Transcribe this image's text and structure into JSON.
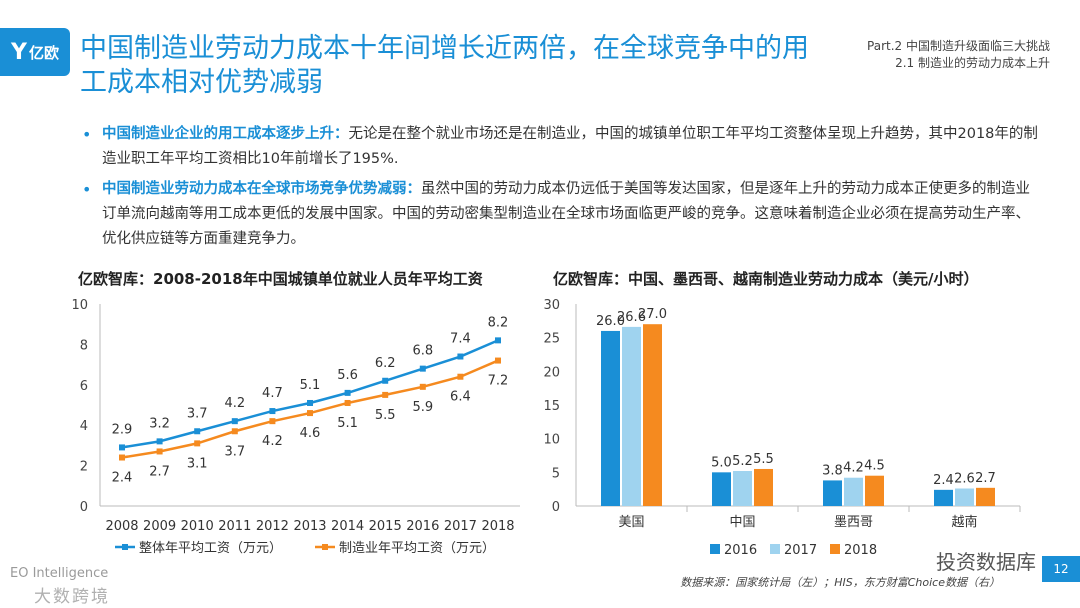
{
  "header": {
    "logo_text": "亿欧",
    "title": "中国制造业劳动力成本十年间增长近两倍，在全球竞争中的用工成本相对优势减弱",
    "part_line1": "Part.2  中国制造升级面临三大挑战",
    "part_line2": "2.1  制造业的劳动力成本上升"
  },
  "bullets": [
    {
      "lead": "中国制造业企业的用工成本逐步上升：",
      "text": "无论是在整个就业市场还是在制造业，中国的城镇单位职工年平均工资整体呈现上升趋势，其中2018年的制造业职工年平均工资相比10年前增长了195%."
    },
    {
      "lead": "中国制造业劳动力成本在全球市场竞争优势减弱：",
      "text": "虽然中国的劳动力成本仍远低于美国等发达国家，但是逐年上升的劳动力成本正使更多的制造业订单流向越南等用工成本更低的发展中国家。中国的劳动密集型制造业在全球市场面临更严峻的竞争。这意味着制造企业必须在提高劳动生产率、优化供应链等方面重建竞争力。"
    }
  ],
  "chart_data": [
    {
      "type": "line",
      "title": "亿欧智库：2008-2018年中国城镇单位就业人员年平均工资",
      "x": [
        "2008",
        "2009",
        "2010",
        "2011",
        "2012",
        "2013",
        "2014",
        "2015",
        "2016",
        "2017",
        "2018"
      ],
      "ylim": [
        0,
        10
      ],
      "yticks": [
        "0",
        "2",
        "4",
        "6",
        "8",
        "10"
      ],
      "grid": false,
      "legend": "bottom",
      "series": [
        {
          "name": "整体年平均工资（万元）",
          "color": "#1a8fd6",
          "values": [
            2.9,
            3.2,
            3.7,
            4.2,
            4.7,
            5.1,
            5.6,
            6.2,
            6.8,
            7.4,
            8.2
          ],
          "labels": [
            "2.9",
            "3.2",
            "3.7",
            "4.2",
            "4.7",
            "5.1",
            "5.6",
            "6.2",
            "6.8",
            "7.4",
            "8.2"
          ]
        },
        {
          "name": "制造业年平均工资（万元）",
          "color": "#f58a1f",
          "values": [
            2.4,
            2.7,
            3.1,
            3.7,
            4.2,
            4.6,
            5.1,
            5.5,
            5.9,
            6.4,
            7.2
          ],
          "labels": [
            "2.4",
            "2.7",
            "3.1",
            "3.7",
            "4.2",
            "4.6",
            "5.1",
            "5.5",
            "5.9",
            "6.4",
            "7.2"
          ]
        }
      ]
    },
    {
      "type": "bar",
      "title": "亿欧智库：中国、墨西哥、越南制造业劳动力成本（美元/小时）",
      "categories": [
        "美国",
        "中国",
        "墨西哥",
        "越南"
      ],
      "ylim": [
        0,
        30
      ],
      "yticks": [
        "0",
        "5",
        "10",
        "15",
        "20",
        "25",
        "30"
      ],
      "grid": false,
      "legend": "bottom",
      "series": [
        {
          "name": "2016",
          "color": "#1a8fd6",
          "values": [
            26.0,
            5.0,
            3.8,
            2.4
          ],
          "labels": [
            "26.0",
            "5.0",
            "3.8",
            "2.4"
          ]
        },
        {
          "name": "2017",
          "color": "#9fd3ef",
          "values": [
            26.6,
            5.2,
            4.2,
            2.6
          ],
          "labels": [
            "26.6",
            "5.2",
            "4.2",
            "2.6"
          ]
        },
        {
          "name": "2018",
          "color": "#f58a1f",
          "values": [
            27.0,
            5.5,
            4.5,
            2.7
          ],
          "labels": [
            "27.0",
            "5.5",
            "4.5",
            "2.7"
          ]
        }
      ]
    }
  ],
  "footer": {
    "brand_en": "EO Intelligence",
    "brand_cn": "大数跨境",
    "watermark": "投资数据库",
    "source": "数据来源：国家统计局（左）；HIS，东方财富Choice数据（右）",
    "page": "12"
  },
  "colors": {
    "accent": "#1a8fd6",
    "orange": "#f58a1f",
    "light_blue": "#9fd3ef"
  }
}
